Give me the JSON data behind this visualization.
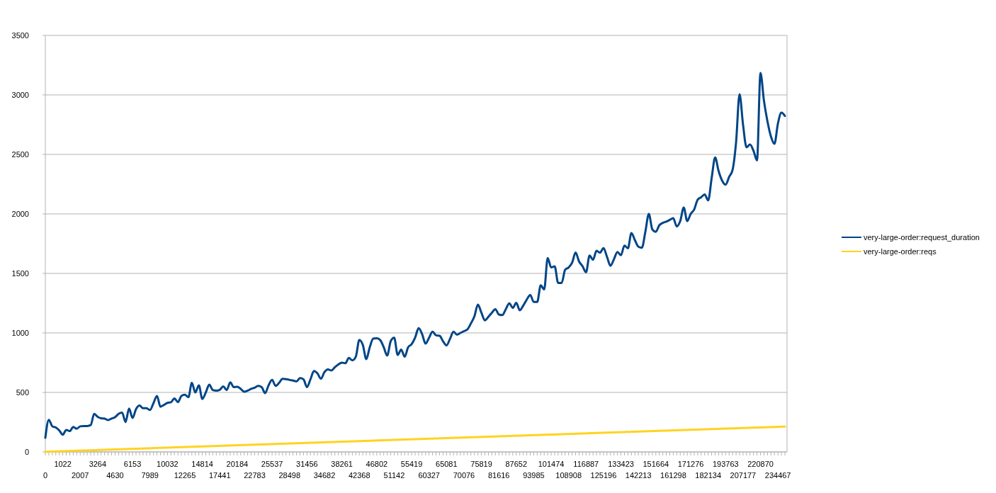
{
  "chart_data": {
    "type": "line",
    "categories": [
      "0",
      null,
      null,
      null,
      null,
      "1022",
      null,
      null,
      null,
      null,
      "2007",
      null,
      null,
      null,
      null,
      "3264",
      null,
      null,
      null,
      null,
      "4630",
      null,
      null,
      null,
      null,
      "6153",
      null,
      null,
      null,
      null,
      "7989",
      null,
      null,
      null,
      null,
      "10032",
      null,
      null,
      null,
      null,
      "12265",
      null,
      null,
      null,
      null,
      "14814",
      null,
      null,
      null,
      null,
      "17441",
      null,
      null,
      null,
      null,
      "20184",
      null,
      null,
      null,
      null,
      "22783",
      null,
      null,
      null,
      null,
      "25537",
      null,
      null,
      null,
      null,
      "28498",
      null,
      null,
      null,
      null,
      "31456",
      null,
      null,
      null,
      null,
      "34682",
      null,
      null,
      null,
      null,
      "38261",
      null,
      null,
      null,
      null,
      "42368",
      null,
      null,
      null,
      null,
      "46802",
      null,
      null,
      null,
      null,
      "51142",
      null,
      null,
      null,
      null,
      "55419",
      null,
      null,
      null,
      null,
      "60327",
      null,
      null,
      null,
      null,
      "65081",
      null,
      null,
      null,
      null,
      "70076",
      null,
      null,
      null,
      null,
      "75819",
      null,
      null,
      null,
      null,
      "81616",
      null,
      null,
      null,
      null,
      "87652",
      null,
      null,
      null,
      null,
      "93985",
      null,
      null,
      null,
      null,
      "101474",
      null,
      null,
      null,
      null,
      "108908",
      null,
      null,
      null,
      null,
      "116887",
      null,
      null,
      null,
      null,
      "125196",
      null,
      null,
      null,
      null,
      "133423",
      null,
      null,
      null,
      null,
      "142213",
      null,
      null,
      null,
      null,
      "151664",
      null,
      null,
      null,
      null,
      "161298",
      null,
      null,
      null,
      null,
      "171276",
      null,
      null,
      null,
      null,
      "182134",
      null,
      null,
      null,
      null,
      "193763",
      null,
      null,
      null,
      null,
      "207177",
      null,
      null,
      null,
      null,
      "220870",
      null,
      null,
      null,
      null,
      "234467",
      null,
      null
    ],
    "series": [
      {
        "name": "very-large-order:request_duration",
        "color": "#004586",
        "values": [
          119,
          270,
          215,
          205,
          180,
          145,
          185,
          175,
          210,
          195,
          215,
          218,
          218,
          225,
          320,
          295,
          283,
          280,
          268,
          280,
          292,
          320,
          330,
          252,
          365,
          285,
          360,
          390,
          367,
          367,
          352,
          410,
          470,
          380,
          395,
          412,
          417,
          450,
          418,
          470,
          480,
          460,
          580,
          500,
          560,
          445,
          500,
          565,
          520,
          515,
          522,
          550,
          520,
          585,
          545,
          548,
          530,
          506,
          515,
          530,
          540,
          555,
          545,
          494,
          560,
          605,
          555,
          580,
          615,
          612,
          605,
          600,
          593,
          620,
          610,
          545,
          610,
          680,
          660,
          615,
          670,
          694,
          684,
          712,
          735,
          750,
          745,
          790,
          770,
          800,
          940,
          900,
          780,
          880,
          952,
          955,
          940,
          880,
          810,
          930,
          960,
          815,
          860,
          800,
          880,
          905,
          960,
          1040,
          990,
          910,
          960,
          1010,
          980,
          976,
          930,
          895,
          950,
          1010,
          985,
          1000,
          1015,
          1030,
          1080,
          1140,
          1238,
          1170,
          1106,
          1135,
          1170,
          1200,
          1155,
          1150,
          1200,
          1249,
          1210,
          1253,
          1190,
          1230,
          1280,
          1319,
          1260,
          1260,
          1400,
          1366,
          1630,
          1550,
          1560,
          1420,
          1420,
          1530,
          1550,
          1590,
          1675,
          1600,
          1560,
          1510,
          1650,
          1615,
          1690,
          1674,
          1713,
          1640,
          1564,
          1620,
          1680,
          1653,
          1734,
          1711,
          1840,
          1780,
          1725,
          1716,
          1850,
          2000,
          1870,
          1850,
          1905,
          1925,
          1935,
          1950,
          1964,
          1895,
          1940,
          2054,
          1940,
          2000,
          2038,
          2120,
          2140,
          2163,
          2113,
          2300,
          2474,
          2360,
          2280,
          2246,
          2310,
          2370,
          2600,
          3006,
          2750,
          2560,
          2583,
          2530,
          2450,
          3185,
          2950,
          2778,
          2650,
          2589,
          2760,
          2851,
          2823
        ]
      },
      {
        "name": "very-large-order:reqs",
        "color": "#ffd320",
        "values": [
          1,
          2,
          3,
          4,
          5,
          6,
          7,
          8,
          9,
          10,
          11,
          12,
          13,
          14,
          15,
          16,
          17,
          18,
          19,
          20,
          21,
          22,
          23,
          24,
          25,
          26,
          27,
          28,
          29,
          30,
          31,
          32,
          33,
          34,
          35,
          36,
          37,
          38,
          39,
          40,
          41,
          42,
          43,
          44,
          45,
          46,
          47,
          48,
          49,
          50,
          51,
          52,
          53,
          54,
          55,
          56,
          57,
          58,
          59,
          60,
          61,
          62,
          63,
          64,
          65,
          66,
          67,
          68,
          69,
          70,
          71,
          72,
          73,
          74,
          75,
          76,
          77,
          78,
          79,
          80,
          81,
          82,
          83,
          84,
          85,
          86,
          87,
          88,
          89,
          90,
          91,
          92,
          93,
          94,
          95,
          96,
          97,
          98,
          99,
          100,
          101,
          102,
          103,
          104,
          105,
          106,
          107,
          108,
          109,
          110,
          111,
          112,
          113,
          114,
          115,
          116,
          117,
          118,
          119,
          120,
          121,
          122,
          123,
          124,
          125,
          126,
          127,
          128,
          129,
          130,
          131,
          132,
          133,
          134,
          135,
          136,
          137,
          138,
          139,
          140,
          141,
          142,
          143,
          144,
          145,
          146,
          147,
          148,
          149,
          150,
          151,
          152,
          153,
          154,
          155,
          156,
          157,
          158,
          159,
          160,
          161,
          162,
          163,
          164,
          165,
          166,
          167,
          168,
          169,
          170,
          171,
          172,
          173,
          174,
          175,
          176,
          177,
          178,
          179,
          180,
          181,
          182,
          183,
          184,
          185,
          186,
          187,
          188,
          189,
          190,
          191,
          192,
          193,
          194,
          195,
          196,
          197,
          198,
          199,
          200,
          201,
          202,
          203,
          204,
          205,
          206,
          207,
          208,
          209,
          210,
          211,
          212,
          213
        ]
      }
    ],
    "ylim": [
      0,
      3500
    ],
    "yticks": [
      0,
      500,
      1000,
      1500,
      2000,
      2500,
      3000,
      3500
    ],
    "grid": "y",
    "legend": "right"
  }
}
